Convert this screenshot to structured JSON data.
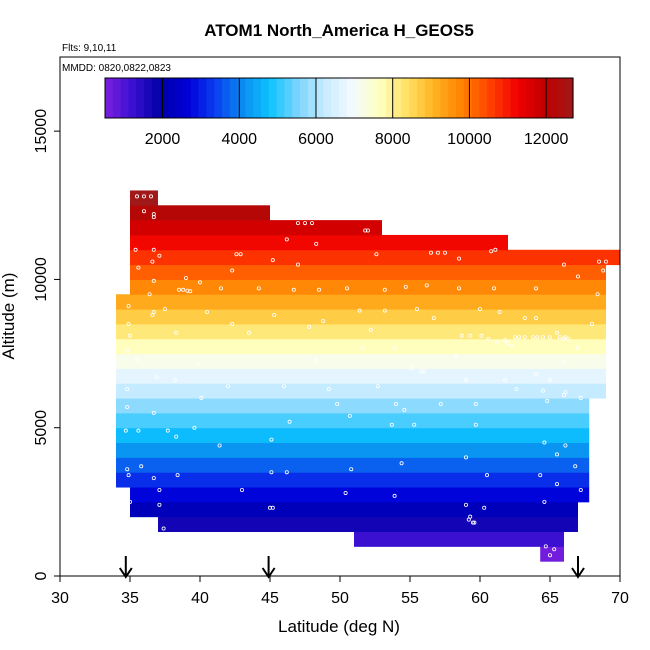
{
  "chart_data": {
    "type": "heatmap",
    "title": "ATOM1 North_America H_GEOS5",
    "subtitle_flights": "Flts: 9,10,11",
    "subtitle_dates": "MMDD: 0820,0822,0823",
    "xlabel": "Latitude (deg N)",
    "ylabel": "Altitude (m)",
    "xlim": [
      30,
      70
    ],
    "ylim": [
      0,
      17500
    ],
    "xticks": [
      30,
      35,
      40,
      45,
      50,
      55,
      60,
      65,
      70
    ],
    "yticks": [
      0,
      5000,
      10000,
      15000
    ],
    "grid": false,
    "colorbar": {
      "range": [
        500,
        12700
      ],
      "ticks": [
        2000,
        4000,
        6000,
        8000,
        10000,
        12000
      ],
      "colors": [
        "#7b1fe0",
        "#3a10d0",
        "#0000a8",
        "#0000d8",
        "#0a3cf0",
        "#0a8cf0",
        "#0ec4ff",
        "#7ad4ff",
        "#c8ecff",
        "#f4faff",
        "#ffffc0",
        "#ffe060",
        "#ffb020",
        "#ff8000",
        "#ff4000",
        "#f00000",
        "#c00000",
        "#a01818"
      ],
      "placement": "top"
    },
    "layers": [
      {
        "alt_bottom": 500,
        "alt_top": 1000,
        "lat_min": 64.3,
        "lat_max": 66.0,
        "value": 600
      },
      {
        "alt_bottom": 1000,
        "alt_top": 1500,
        "lat_min": 51.0,
        "lat_max": 66.0,
        "value": 1200
      },
      {
        "alt_bottom": 1500,
        "alt_top": 2000,
        "lat_min": 37.0,
        "lat_max": 67.0,
        "value": 1700
      },
      {
        "alt_bottom": 2000,
        "alt_top": 2500,
        "lat_min": 35.0,
        "lat_max": 67.0,
        "value": 2200
      },
      {
        "alt_bottom": 2500,
        "alt_top": 3000,
        "lat_min": 35.0,
        "lat_max": 67.8,
        "value": 2700
      },
      {
        "alt_bottom": 3000,
        "alt_top": 3500,
        "lat_min": 34.0,
        "lat_max": 67.8,
        "value": 3200
      },
      {
        "alt_bottom": 3500,
        "alt_top": 4000,
        "lat_min": 34.0,
        "lat_max": 67.8,
        "value": 3700
      },
      {
        "alt_bottom": 4000,
        "alt_top": 4500,
        "lat_min": 34.0,
        "lat_max": 67.8,
        "value": 4200
      },
      {
        "alt_bottom": 4500,
        "alt_top": 5000,
        "lat_min": 34.0,
        "lat_max": 67.8,
        "value": 4700
      },
      {
        "alt_bottom": 5000,
        "alt_top": 5500,
        "lat_min": 34.0,
        "lat_max": 67.8,
        "value": 5200
      },
      {
        "alt_bottom": 5500,
        "alt_top": 6000,
        "lat_min": 34.0,
        "lat_max": 67.8,
        "value": 5700
      },
      {
        "alt_bottom": 6000,
        "alt_top": 6500,
        "lat_min": 34.0,
        "lat_max": 69.0,
        "value": 6200
      },
      {
        "alt_bottom": 6500,
        "alt_top": 7000,
        "lat_min": 34.0,
        "lat_max": 69.0,
        "value": 6700
      },
      {
        "alt_bottom": 7000,
        "alt_top": 7500,
        "lat_min": 34.0,
        "lat_max": 69.0,
        "value": 7200
      },
      {
        "alt_bottom": 7500,
        "alt_top": 8000,
        "lat_min": 34.0,
        "lat_max": 69.0,
        "value": 7700
      },
      {
        "alt_bottom": 8000,
        "alt_top": 8500,
        "lat_min": 34.0,
        "lat_max": 69.0,
        "value": 8200
      },
      {
        "alt_bottom": 8500,
        "alt_top": 9000,
        "lat_min": 34.0,
        "lat_max": 69.0,
        "value": 8700
      },
      {
        "alt_bottom": 9000,
        "alt_top": 9500,
        "lat_min": 34.0,
        "lat_max": 69.0,
        "value": 9200
      },
      {
        "alt_bottom": 9500,
        "alt_top": 10000,
        "lat_min": 35.0,
        "lat_max": 69.0,
        "value": 9700
      },
      {
        "alt_bottom": 10000,
        "alt_top": 10500,
        "lat_min": 35.0,
        "lat_max": 69.0,
        "value": 10200
      },
      {
        "alt_bottom": 10500,
        "alt_top": 11000,
        "lat_min": 35.0,
        "lat_max": 70.0,
        "value": 10700
      },
      {
        "alt_bottom": 11000,
        "alt_top": 11500,
        "lat_min": 35.0,
        "lat_max": 62.0,
        "value": 11200
      },
      {
        "alt_bottom": 11500,
        "alt_top": 12000,
        "lat_min": 35.0,
        "lat_max": 53.0,
        "value": 11700
      },
      {
        "alt_bottom": 12000,
        "alt_top": 12500,
        "lat_min": 35.0,
        "lat_max": 45.0,
        "value": 12200
      },
      {
        "alt_bottom": 12500,
        "alt_top": 13000,
        "lat_min": 35.0,
        "lat_max": 37.0,
        "value": 12700
      }
    ],
    "points": [
      [
        35.5,
        12800
      ],
      [
        36.0,
        12800
      ],
      [
        36.5,
        12800
      ],
      [
        36.0,
        12300
      ],
      [
        36.7,
        12200
      ],
      [
        36.7,
        12100
      ],
      [
        47.0,
        11900
      ],
      [
        47.5,
        11900
      ],
      [
        48.0,
        11900
      ],
      [
        51.8,
        11650
      ],
      [
        52.0,
        11650
      ],
      [
        46.2,
        11350
      ],
      [
        48.3,
        11200
      ],
      [
        35.4,
        11000
      ],
      [
        36.7,
        11000
      ],
      [
        37.1,
        10800
      ],
      [
        42.6,
        10850
      ],
      [
        42.9,
        10850
      ],
      [
        45.2,
        10650
      ],
      [
        47.0,
        10500
      ],
      [
        52.6,
        10850
      ],
      [
        56.5,
        10900
      ],
      [
        57.0,
        10900
      ],
      [
        57.5,
        10900
      ],
      [
        58.5,
        10700
      ],
      [
        60.8,
        10950
      ],
      [
        61.1,
        11000
      ],
      [
        66.0,
        10500
      ],
      [
        68.5,
        10600
      ],
      [
        69.0,
        10600
      ],
      [
        67.0,
        10100
      ],
      [
        68.8,
        10300
      ],
      [
        35.6,
        10400
      ],
      [
        36.6,
        10600
      ],
      [
        36.7,
        9950
      ],
      [
        39.0,
        10050
      ],
      [
        40.0,
        9900
      ],
      [
        41.5,
        9700
      ],
      [
        38.5,
        9650
      ],
      [
        38.8,
        9650
      ],
      [
        39.1,
        9620
      ],
      [
        39.3,
        9600
      ],
      [
        42.3,
        10300
      ],
      [
        44.2,
        9700
      ],
      [
        46.7,
        9650
      ],
      [
        48.5,
        9650
      ],
      [
        50.5,
        9700
      ],
      [
        53.2,
        9650
      ],
      [
        54.7,
        9750
      ],
      [
        56.2,
        9800
      ],
      [
        58.5,
        9700
      ],
      [
        61.0,
        9700
      ],
      [
        64.0,
        9700
      ],
      [
        68.4,
        9500
      ],
      [
        34.9,
        9100
      ],
      [
        36.4,
        9500
      ],
      [
        36.7,
        8900
      ],
      [
        37.5,
        9000
      ],
      [
        40.5,
        8900
      ],
      [
        42.3,
        8500
      ],
      [
        45.3,
        8800
      ],
      [
        48.8,
        8600
      ],
      [
        51.4,
        8950
      ],
      [
        52.2,
        8300
      ],
      [
        53.2,
        8950
      ],
      [
        55.5,
        9000
      ],
      [
        56.7,
        8700
      ],
      [
        60.0,
        9000
      ],
      [
        61.4,
        8900
      ],
      [
        63.2,
        8700
      ],
      [
        64.0,
        8700
      ],
      [
        65.5,
        8200
      ],
      [
        66.0,
        8000
      ],
      [
        66.3,
        8000
      ],
      [
        68.0,
        8500
      ],
      [
        34.9,
        8500
      ],
      [
        35.0,
        8100
      ],
      [
        36.6,
        8800
      ],
      [
        38.3,
        8200
      ],
      [
        43.5,
        8200
      ],
      [
        47.8,
        8400
      ],
      [
        58.7,
        8100
      ],
      [
        59.3,
        8100
      ],
      [
        60.1,
        8100
      ],
      [
        60.6,
        8000
      ],
      [
        61.2,
        7900
      ],
      [
        61.8,
        7950
      ],
      [
        62.0,
        7850
      ],
      [
        62.3,
        7750
      ],
      [
        62.5,
        8050
      ],
      [
        62.8,
        8050
      ],
      [
        63.2,
        8050
      ],
      [
        63.8,
        8050
      ],
      [
        64.1,
        8050
      ],
      [
        64.5,
        8050
      ],
      [
        65.0,
        8050
      ],
      [
        65.7,
        8050
      ],
      [
        66.1,
        8050
      ],
      [
        67.0,
        7700
      ],
      [
        34.8,
        7600
      ],
      [
        35.5,
        7300
      ],
      [
        38.2,
        6600
      ],
      [
        39.9,
        7150
      ],
      [
        48.3,
        7300
      ],
      [
        51.6,
        7700
      ],
      [
        53.9,
        7700
      ],
      [
        55.1,
        7000
      ],
      [
        56.0,
        6900
      ],
      [
        58.3,
        7400
      ],
      [
        59.0,
        6600
      ],
      [
        61.8,
        6600
      ],
      [
        64.0,
        6800
      ],
      [
        65.0,
        6600
      ],
      [
        66.0,
        7200
      ],
      [
        34.8,
        6300
      ],
      [
        36.9,
        6700
      ],
      [
        42.0,
        6400
      ],
      [
        46.0,
        6400
      ],
      [
        49.2,
        6300
      ],
      [
        52.7,
        6400
      ],
      [
        54.0,
        5800
      ],
      [
        55.8,
        6900
      ],
      [
        59.7,
        5800
      ],
      [
        62.6,
        6300
      ],
      [
        64.5,
        6250
      ],
      [
        66.1,
        6200
      ],
      [
        67.2,
        6000
      ],
      [
        34.8,
        5700
      ],
      [
        40.1,
        6000
      ],
      [
        49.8,
        5800
      ],
      [
        54.6,
        5600
      ],
      [
        57.2,
        5800
      ],
      [
        64.8,
        5900
      ],
      [
        66.0,
        6100
      ],
      [
        34.7,
        4900
      ],
      [
        35.6,
        4900
      ],
      [
        36.7,
        5500
      ],
      [
        37.7,
        4900
      ],
      [
        39.6,
        5000
      ],
      [
        45.1,
        4600
      ],
      [
        46.4,
        5200
      ],
      [
        50.7,
        5400
      ],
      [
        53.7,
        5100
      ],
      [
        55.3,
        5100
      ],
      [
        59.7,
        5100
      ],
      [
        64.6,
        4500
      ],
      [
        65.5,
        4100
      ],
      [
        66.1,
        4400
      ],
      [
        34.8,
        3600
      ],
      [
        35.8,
        3700
      ],
      [
        36.7,
        3300
      ],
      [
        38.3,
        4700
      ],
      [
        41.4,
        4400
      ],
      [
        45.1,
        3500
      ],
      [
        46.2,
        3500
      ],
      [
        50.8,
        3600
      ],
      [
        54.4,
        3800
      ],
      [
        59.0,
        4000
      ],
      [
        60.5,
        3400
      ],
      [
        64.3,
        3400
      ],
      [
        65.5,
        3100
      ],
      [
        66.8,
        3700
      ],
      [
        34.9,
        3400
      ],
      [
        37.1,
        2900
      ],
      [
        38.4,
        3400
      ],
      [
        43.0,
        2900
      ],
      [
        45.0,
        2300
      ],
      [
        50.4,
        2800
      ],
      [
        53.9,
        2700
      ],
      [
        59.0,
        2400
      ],
      [
        59.3,
        2000
      ],
      [
        59.5,
        1800
      ],
      [
        60.3,
        2300
      ],
      [
        64.6,
        2500
      ],
      [
        67.2,
        2900
      ],
      [
        35.0,
        2500
      ],
      [
        37.1,
        2400
      ],
      [
        37.4,
        1600
      ],
      [
        45.2,
        2300
      ],
      [
        59.2,
        1900
      ],
      [
        59.6,
        1800
      ],
      [
        64.7,
        1000
      ],
      [
        65.3,
        900
      ],
      [
        65.0,
        700
      ]
    ],
    "flight_markers_lat": [
      34.7,
      44.9,
      67.0
    ]
  }
}
